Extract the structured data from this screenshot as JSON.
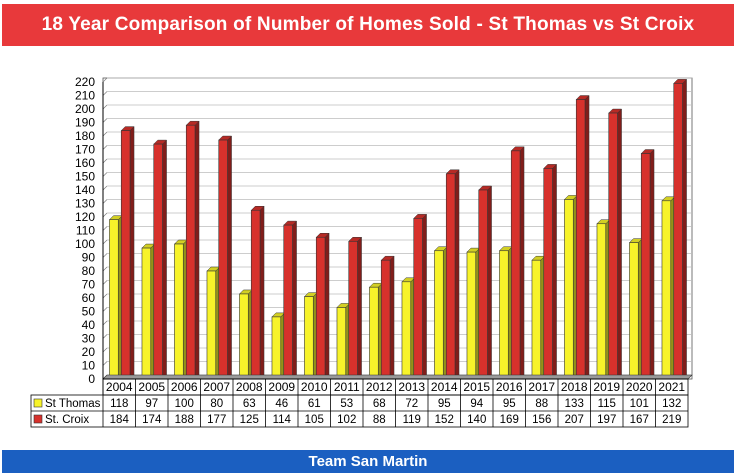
{
  "header": {
    "title": "18 Year Comparison of Number of Homes Sold - St Thomas vs St Croix"
  },
  "footer": {
    "label": "Team San Martin"
  },
  "colors": {
    "title_banner": "#e8393b",
    "footer_banner": "#1b5fc1",
    "st_thomas": "#f7f32a",
    "st_croix": "#d7312c",
    "plot_background": "#ffffff",
    "gridline": "#bdbdbd"
  },
  "chart_data": {
    "type": "bar",
    "title": "",
    "xlabel": "",
    "ylabel": "",
    "ylim": [
      0,
      220
    ],
    "y_tick_step": 10,
    "grid": true,
    "legend": "data-table-left",
    "categories": [
      "2004",
      "2005",
      "2006",
      "2007",
      "2008",
      "2009",
      "2010",
      "2011",
      "2012",
      "2013",
      "2014",
      "2015",
      "2016",
      "2017",
      "2018",
      "2019",
      "2020",
      "2021"
    ],
    "series": [
      {
        "name": "St Thomas",
        "color": "#f7f32a",
        "values": [
          118,
          97,
          100,
          80,
          63,
          46,
          61,
          53,
          68,
          72,
          95,
          94,
          95,
          88,
          133,
          115,
          101,
          132
        ]
      },
      {
        "name": "St. Croix",
        "color": "#d7312c",
        "values": [
          184,
          174,
          188,
          177,
          125,
          114,
          105,
          102,
          88,
          119,
          152,
          140,
          169,
          156,
          207,
          197,
          167,
          219
        ]
      }
    ]
  }
}
